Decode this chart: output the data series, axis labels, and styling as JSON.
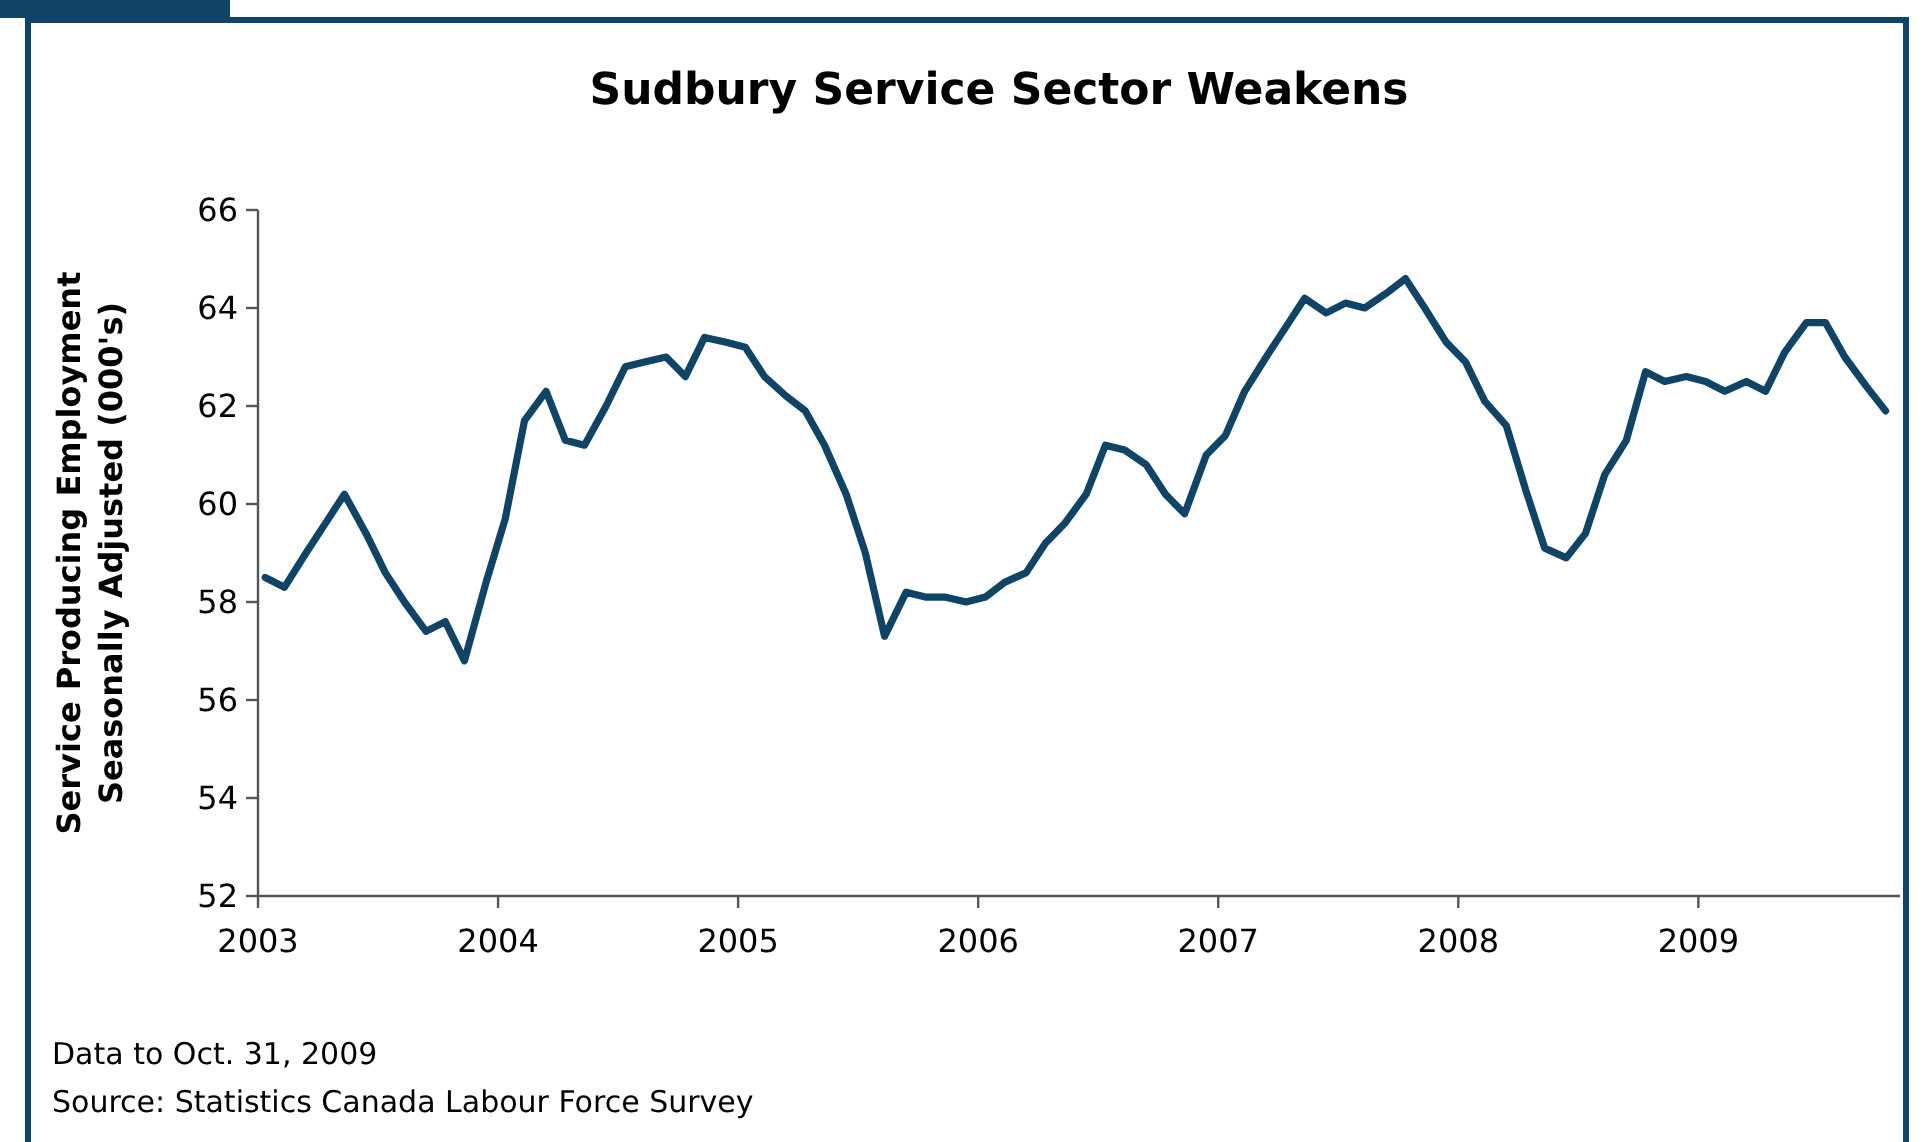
{
  "chart_data": {
    "type": "line",
    "title": "Sudbury Service Sector Weakens",
    "ylabel": "Service Producing Employment\nSeasonally Adjusted (000's)",
    "annotations": [
      "Data to Oct. 31, 2009",
      "Source: Statistics Canada Labour Force Survey"
    ],
    "x": [
      2003.03,
      2003.11,
      2003.2,
      2003.28,
      2003.36,
      2003.45,
      2003.53,
      2003.61,
      2003.7,
      2003.78,
      2003.86,
      2003.95,
      2004.03,
      2004.11,
      2004.2,
      2004.28,
      2004.36,
      2004.45,
      2004.53,
      2004.61,
      2004.7,
      2004.78,
      2004.86,
      2004.95,
      2005.03,
      2005.11,
      2005.2,
      2005.28,
      2005.36,
      2005.45,
      2005.53,
      2005.61,
      2005.7,
      2005.78,
      2005.86,
      2005.95,
      2006.03,
      2006.11,
      2006.2,
      2006.28,
      2006.36,
      2006.45,
      2006.53,
      2006.61,
      2006.7,
      2006.78,
      2006.86,
      2006.95,
      2007.03,
      2007.11,
      2007.2,
      2007.28,
      2007.36,
      2007.45,
      2007.53,
      2007.61,
      2007.7,
      2007.78,
      2007.86,
      2007.95,
      2008.03,
      2008.11,
      2008.2,
      2008.28,
      2008.36,
      2008.45,
      2008.53,
      2008.61,
      2008.7,
      2008.78,
      2008.86,
      2008.95,
      2009.03,
      2009.11,
      2009.2,
      2009.28,
      2009.36,
      2009.45,
      2009.53,
      2009.61,
      2009.7,
      2009.78
    ],
    "series": [
      {
        "color": "#0f4466",
        "values": [
          58.5,
          58.3,
          59.0,
          59.6,
          60.2,
          59.4,
          58.6,
          58.0,
          57.4,
          57.6,
          56.8,
          58.4,
          59.7,
          61.7,
          62.3,
          61.3,
          61.2,
          62.0,
          62.8,
          62.9,
          63.0,
          62.6,
          63.4,
          63.3,
          63.2,
          62.6,
          62.2,
          61.9,
          61.2,
          60.2,
          59.0,
          57.3,
          58.2,
          58.1,
          58.1,
          58.0,
          58.1,
          58.4,
          58.6,
          59.2,
          59.6,
          60.2,
          61.2,
          61.1,
          60.8,
          60.2,
          59.8,
          61.0,
          61.4,
          62.3,
          63.0,
          63.6,
          64.2,
          63.9,
          64.1,
          64.0,
          64.3,
          64.6,
          64.0,
          63.3,
          62.9,
          62.1,
          61.6,
          60.3,
          59.1,
          58.9,
          59.4,
          60.6,
          61.3,
          62.7,
          62.5,
          62.6,
          62.5,
          62.3,
          62.5,
          62.3,
          63.1,
          63.7,
          63.7,
          63.0,
          62.4,
          61.9
        ]
      }
    ],
    "xlim": [
      2003,
      2009.84
    ],
    "xticks": [
      2003,
      2004,
      2005,
      2006,
      2007,
      2008,
      2009
    ],
    "ylim": [
      52,
      66
    ],
    "yticks": [
      52,
      54,
      56,
      58,
      60,
      62,
      64,
      66
    ],
    "line_style": "solid"
  }
}
